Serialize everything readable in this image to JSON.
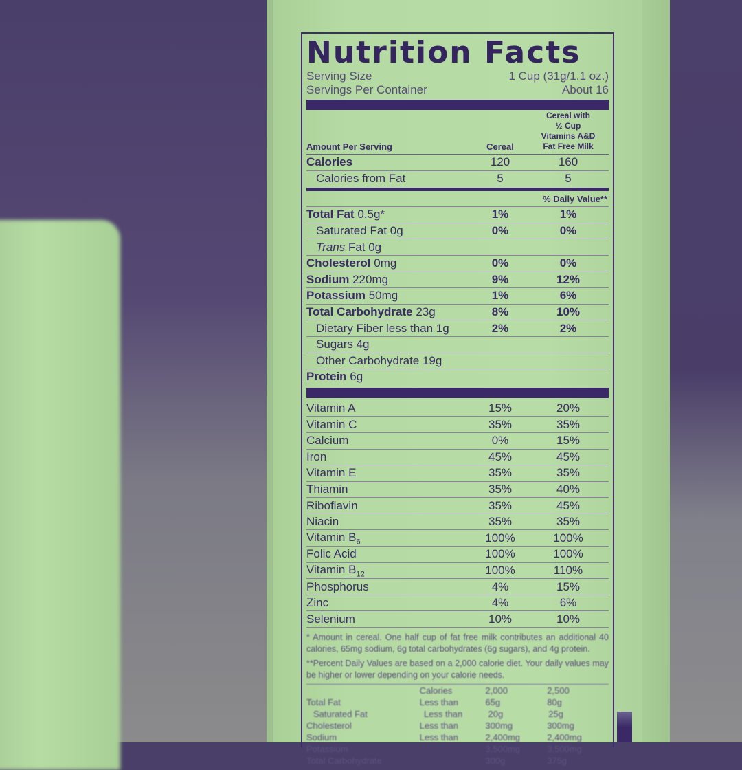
{
  "label": {
    "title": "Nutrition Facts",
    "serving_size_label": "Serving Size",
    "serving_size_value": "1 Cup (31g/1.1 oz.)",
    "servings_label": "Servings Per Container",
    "servings_value": "About 16",
    "header": {
      "amount": "Amount Per Serving",
      "col1": "Cereal",
      "col2_line1": "Cereal with",
      "col2_line2": "½ Cup",
      "col2_line3": "Vitamins A&D",
      "col2_line4": "Fat Free Milk"
    },
    "calories": {
      "name": "Calories",
      "v1": "120",
      "v2": "160"
    },
    "calories_fat": {
      "name": "Calories from Fat",
      "v1": "5",
      "v2": "5"
    },
    "dv_header": "% Daily Value**",
    "nutrients": [
      {
        "name": "Total Fat",
        "amount": "0.5g*",
        "v1": "1%",
        "v2": "1%"
      },
      {
        "name": "Saturated Fat",
        "amount": "0g",
        "v1": "0%",
        "v2": "0%"
      },
      {
        "name": "Trans",
        "amount": "Fat 0g",
        "v1": "",
        "v2": ""
      },
      {
        "name": "Cholesterol",
        "amount": "0mg",
        "v1": "0%",
        "v2": "0%"
      },
      {
        "name": "Sodium",
        "amount": "220mg",
        "v1": "9%",
        "v2": "12%"
      },
      {
        "name": "Potassium",
        "amount": "50mg",
        "v1": "1%",
        "v2": "6%"
      },
      {
        "name": "Total Carbohydrate",
        "amount": "23g",
        "v1": "8%",
        "v2": "10%"
      },
      {
        "name": "Dietary Fiber less than 1g",
        "amount": "",
        "v1": "2%",
        "v2": "2%"
      },
      {
        "name": "Sugars 4g",
        "amount": "",
        "v1": "",
        "v2": ""
      },
      {
        "name": "Other Carbohydrate 19g",
        "amount": "",
        "v1": "",
        "v2": ""
      },
      {
        "name": "Protein",
        "amount": "6g",
        "v1": "",
        "v2": ""
      }
    ],
    "vitamins": [
      {
        "name": "Vitamin A",
        "v1": "15%",
        "v2": "20%"
      },
      {
        "name": "Vitamin C",
        "v1": "35%",
        "v2": "35%"
      },
      {
        "name": "Calcium",
        "v1": "0%",
        "v2": "15%"
      },
      {
        "name": "Iron",
        "v1": "45%",
        "v2": "45%"
      },
      {
        "name": "Vitamin E",
        "v1": "35%",
        "v2": "35%"
      },
      {
        "name": "Thiamin",
        "v1": "35%",
        "v2": "40%"
      },
      {
        "name": "Riboflavin",
        "v1": "35%",
        "v2": "45%"
      },
      {
        "name": "Niacin",
        "v1": "35%",
        "v2": "35%"
      },
      {
        "name": "Vitamin B6",
        "v1": "100%",
        "v2": "100%"
      },
      {
        "name": "Folic Acid",
        "v1": "100%",
        "v2": "100%"
      },
      {
        "name": "Vitamin B12",
        "v1": "100%",
        "v2": "110%"
      },
      {
        "name": "Phosphorus",
        "v1": "4%",
        "v2": "15%"
      },
      {
        "name": "Zinc",
        "v1": "4%",
        "v2": "6%"
      },
      {
        "name": "Selenium",
        "v1": "10%",
        "v2": "10%"
      }
    ],
    "footnote1": "* Amount in cereal. One half cup of fat free milk contributes an additional 40 calories, 65mg sodium, 6g total carbohydrates (6g sugars), and 4g protein.",
    "footnote2": "**Percent Daily Values are based on a 2,000 calorie diet. Your daily values may be higher or lower depending on your calorie needs.",
    "dv_table": {
      "head": [
        "",
        "Calories",
        "2,000",
        "2,500"
      ],
      "rows": [
        [
          "Total Fat",
          "Less than",
          "65g",
          "80g"
        ],
        [
          "Saturated Fat",
          "Less than",
          "20g",
          "25g"
        ],
        [
          "Cholesterol",
          "Less than",
          "300mg",
          "300mg"
        ],
        [
          "Sodium",
          "Less than",
          "2,400mg",
          "2,400mg"
        ],
        [
          "Potassium",
          "",
          "3,500mg",
          "3,500mg"
        ],
        [
          "Total Carbohydrate",
          "",
          "300g",
          "375g"
        ]
      ]
    }
  }
}
